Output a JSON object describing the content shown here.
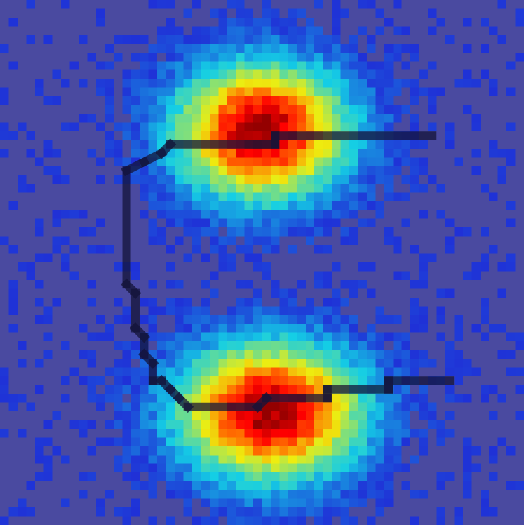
{
  "chart_data": {
    "type": "heatmap",
    "title": "",
    "xlabel": "",
    "ylabel": "",
    "grid": false,
    "legend": "none",
    "colormap": "jet",
    "grid_size": [
      60,
      60
    ],
    "background_color": "#4a4aa0",
    "clusters": [
      {
        "name": "upper-cluster",
        "center": [
          29.5,
          14.5
        ],
        "spread": [
          7.0,
          5.5
        ],
        "peak": 1.0
      },
      {
        "name": "lower-cluster",
        "center": [
          30.5,
          46.5
        ],
        "spread": [
          7.5,
          5.5
        ],
        "peak": 1.0
      }
    ],
    "overlay_path": {
      "color": "#14143a",
      "points": [
        [
          49,
          15
        ],
        [
          31,
          15
        ],
        [
          31,
          16
        ],
        [
          19,
          16
        ],
        [
          18,
          17
        ],
        [
          16,
          18
        ],
        [
          14,
          19
        ],
        [
          14,
          32
        ],
        [
          15,
          33
        ],
        [
          15,
          37
        ],
        [
          16,
          38
        ],
        [
          16,
          40
        ],
        [
          17,
          41
        ],
        [
          17,
          43
        ],
        [
          18,
          43
        ],
        [
          19,
          44
        ],
        [
          20,
          45
        ],
        [
          21,
          46
        ],
        [
          29,
          46
        ],
        [
          30,
          45
        ],
        [
          37,
          45
        ],
        [
          37,
          44
        ],
        [
          44,
          44
        ],
        [
          44,
          43
        ],
        [
          51,
          43
        ]
      ]
    }
  }
}
